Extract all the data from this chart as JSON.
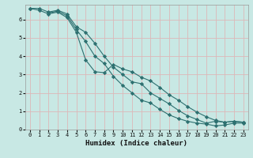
{
  "xlabel": "Humidex (Indice chaleur)",
  "bg_color": "#c8e8e4",
  "grid_color": "#ddb8b8",
  "line_color": "#2d7070",
  "xlim": [
    -0.5,
    23.5
  ],
  "ylim": [
    0,
    6.8
  ],
  "xticks": [
    0,
    1,
    2,
    3,
    4,
    5,
    6,
    7,
    8,
    9,
    10,
    11,
    12,
    13,
    14,
    15,
    16,
    17,
    18,
    19,
    20,
    21,
    22,
    23
  ],
  "yticks": [
    0,
    1,
    2,
    3,
    4,
    5,
    6
  ],
  "series": [
    {
      "x": [
        0,
        1,
        2,
        3,
        4,
        5,
        6,
        7,
        8,
        9,
        10,
        11,
        12,
        13,
        14,
        15,
        16,
        17,
        18,
        19,
        20,
        21,
        22,
        23
      ],
      "y": [
        6.6,
        6.6,
        6.4,
        6.5,
        6.3,
        5.6,
        5.3,
        4.7,
        4.0,
        3.4,
        3.0,
        2.6,
        2.5,
        2.0,
        1.7,
        1.4,
        1.05,
        0.75,
        0.55,
        0.35,
        0.45,
        0.4,
        0.45,
        0.4
      ]
    },
    {
      "x": [
        0,
        1,
        2,
        3,
        4,
        5,
        6,
        7,
        8,
        9,
        10,
        11,
        12,
        13,
        14,
        15,
        16,
        17,
        18,
        19,
        20,
        21,
        22,
        23
      ],
      "y": [
        6.6,
        6.5,
        6.3,
        6.4,
        6.1,
        5.3,
        3.8,
        3.15,
        3.1,
        3.55,
        3.3,
        3.15,
        2.85,
        2.65,
        2.3,
        1.9,
        1.6,
        1.25,
        0.95,
        0.7,
        0.5,
        0.4,
        0.45,
        0.4
      ]
    },
    {
      "x": [
        2,
        3,
        4,
        5,
        6,
        7,
        8,
        9,
        10,
        11,
        12,
        13,
        14,
        15,
        16,
        17,
        18,
        19,
        20,
        21,
        22,
        23
      ],
      "y": [
        6.35,
        6.45,
        6.2,
        5.45,
        4.8,
        4.0,
        3.6,
        2.9,
        2.4,
        2.0,
        1.6,
        1.45,
        1.1,
        0.8,
        0.6,
        0.45,
        0.35,
        0.3,
        0.2,
        0.25,
        0.35,
        0.35
      ]
    }
  ]
}
